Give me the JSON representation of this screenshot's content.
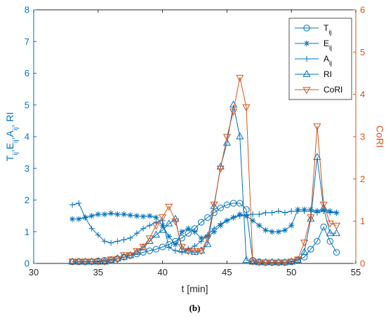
{
  "chart_data": {
    "type": "line",
    "caption": "(b)",
    "xlabel": "t [min]",
    "ylabel_left_parts": [
      "T",
      "ij",
      ",E",
      "ij",
      ",A",
      "ij",
      ", RI"
    ],
    "ylabel_right": "CoRI",
    "xlim": [
      30,
      55
    ],
    "ylim_left": [
      0,
      8
    ],
    "ylim_right": [
      0,
      6
    ],
    "x_ticks": [
      30,
      35,
      40,
      45,
      50,
      55
    ],
    "y_ticks_left": [
      0,
      1,
      2,
      3,
      4,
      5,
      6,
      7,
      8
    ],
    "y_ticks_right": [
      0,
      1,
      2,
      3,
      4,
      5,
      6
    ],
    "grid": false,
    "legend_position": "top-right",
    "colors": {
      "left": "#0072BD",
      "right": "#D95319",
      "axis": "#262626"
    },
    "legend": [
      {
        "main": "T",
        "sub": "ij",
        "marker": "circle",
        "color": "#0072BD"
      },
      {
        "main": "E",
        "sub": "ij",
        "marker": "asterisk",
        "color": "#0072BD"
      },
      {
        "main": "A",
        "sub": "ij",
        "marker": "plus",
        "color": "#0072BD"
      },
      {
        "main": "RI",
        "sub": "",
        "marker": "triangle-up",
        "color": "#0072BD"
      },
      {
        "main": "CoRI",
        "sub": "",
        "marker": "triangle-down",
        "color": "#D95319"
      }
    ],
    "x": [
      33,
      33.5,
      34,
      34.5,
      35,
      35.5,
      36,
      36.5,
      37,
      37.5,
      38,
      38.5,
      39,
      39.5,
      40,
      40.5,
      41,
      41.5,
      42,
      42.5,
      43,
      43.5,
      44,
      44.5,
      45,
      45.5,
      46,
      46.5,
      47,
      47.5,
      48,
      48.5,
      49,
      49.5,
      50,
      50.5,
      51,
      51.5,
      52,
      52.5,
      53,
      53.5
    ],
    "series": [
      {
        "name": "T_ij",
        "axis": "left",
        "marker": "circle",
        "values": [
          0.05,
          0.05,
          0.05,
          0.06,
          0.08,
          0.1,
          0.12,
          0.15,
          0.2,
          0.25,
          0.3,
          0.35,
          0.4,
          0.45,
          0.52,
          0.6,
          0.7,
          0.8,
          0.95,
          1.1,
          1.3,
          1.45,
          1.6,
          1.75,
          1.85,
          1.9,
          1.9,
          1.7,
          0.1,
          0.05,
          0.03,
          0.03,
          0.03,
          0.03,
          0.05,
          0.1,
          0.2,
          0.45,
          0.7,
          1.15,
          0.7,
          0.35
        ]
      },
      {
        "name": "E_ij",
        "axis": "left",
        "marker": "asterisk",
        "values": [
          1.4,
          1.4,
          1.45,
          1.5,
          1.55,
          1.55,
          1.58,
          1.55,
          1.55,
          1.52,
          1.5,
          1.48,
          1.5,
          1.45,
          1.2,
          0.85,
          0.6,
          1.0,
          1.1,
          1.0,
          0.8,
          0.85,
          1.0,
          1.2,
          1.35,
          1.45,
          1.55,
          1.5,
          1.35,
          1.2,
          1.05,
          1.0,
          1.0,
          1.05,
          1.2,
          1.7,
          1.7,
          1.7,
          1.65,
          1.7,
          1.65,
          1.6
        ]
      },
      {
        "name": "A_ij",
        "axis": "left",
        "marker": "plus",
        "values": [
          1.85,
          1.9,
          1.45,
          1.1,
          0.9,
          0.7,
          0.65,
          0.7,
          0.75,
          0.8,
          0.95,
          1.1,
          1.2,
          1.3,
          1.35,
          0.5,
          0.4,
          0.35,
          0.45,
          0.55,
          0.7,
          0.9,
          1.1,
          1.25,
          1.35,
          1.45,
          1.5,
          1.52,
          1.55,
          1.55,
          1.6,
          1.6,
          1.65,
          1.6,
          1.65,
          1.65,
          1.65,
          1.65,
          1.6,
          1.65,
          1.6,
          1.6
        ]
      },
      {
        "name": "RI",
        "axis": "left",
        "marker": "triangle-up",
        "values": [
          0.05,
          0.05,
          0.05,
          0.05,
          0.05,
          0.05,
          0.1,
          0.15,
          0.2,
          0.25,
          0.35,
          0.5,
          0.7,
          0.9,
          1.05,
          1.25,
          1.4,
          0.45,
          0.4,
          0.35,
          0.4,
          0.6,
          1.8,
          3.05,
          3.8,
          5.0,
          4.0,
          0.1,
          0.05,
          0.03,
          0.03,
          0.03,
          0.03,
          0.03,
          0.05,
          0.1,
          0.35,
          1.4,
          3.35,
          1.75,
          0.95,
          0.95
        ]
      },
      {
        "name": "CoRI",
        "axis": "right",
        "marker": "triangle-down",
        "values": [
          0.05,
          0.05,
          0.05,
          0.05,
          0.05,
          0.05,
          0.1,
          0.1,
          0.2,
          0.2,
          0.3,
          0.4,
          0.6,
          0.9,
          1.1,
          1.35,
          1.0,
          0.4,
          0.3,
          0.3,
          0.3,
          0.6,
          1.4,
          2.25,
          3.0,
          3.6,
          4.4,
          3.7,
          0.05,
          0.03,
          0.03,
          0.03,
          0.03,
          0.03,
          0.05,
          0.1,
          0.5,
          1.1,
          3.25,
          1.4,
          0.95,
          0.9
        ]
      }
    ]
  }
}
